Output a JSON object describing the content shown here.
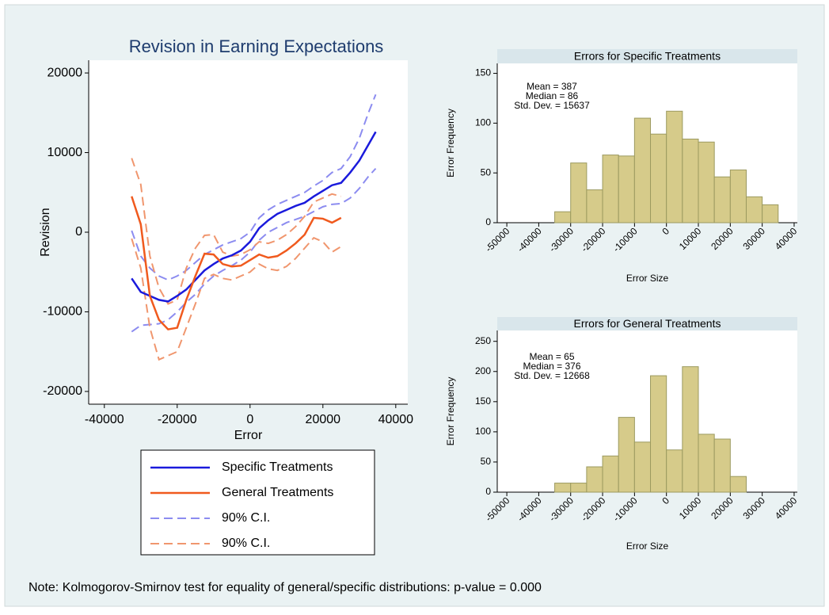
{
  "chart_data": [
    {
      "type": "line",
      "title": "Revision in Earning Expectations",
      "xlabel": "Error",
      "ylabel": "Revision",
      "x": [
        -32500,
        -30000,
        -27500,
        -25000,
        -22500,
        -20000,
        -17500,
        -15000,
        -12500,
        -10000,
        -7500,
        -5000,
        -2500,
        0,
        2500,
        5000,
        7500,
        10000,
        12500,
        15000,
        17500,
        20000,
        22500,
        25000,
        27500,
        30000,
        32500,
        34500
      ],
      "series": [
        {
          "name": "Specific Treatments",
          "color": "#1a1adc",
          "values": [
            -5800,
            -7500,
            -8000,
            -8500,
            -8700,
            -8000,
            -7200,
            -6000,
            -4800,
            -4000,
            -3300,
            -2900,
            -2300,
            -1200,
            500,
            1500,
            2300,
            2800,
            3300,
            3700,
            4500,
            5200,
            5900,
            6200,
            7500,
            9000,
            11000,
            12600
          ]
        },
        {
          "name": "General Treatments",
          "color": "#f05a1e",
          "values": [
            4500,
            1000,
            -8000,
            -11000,
            -12200,
            -12000,
            -8500,
            -5500,
            -2700,
            -2800,
            -4000,
            -4300,
            -4200,
            -3500,
            -2800,
            -3200,
            -3000,
            -2300,
            -1400,
            -300,
            1800,
            1700,
            1200,
            1800,
            null,
            null,
            null,
            null
          ]
        }
      ],
      "bands": [
        {
          "name": "90% C.I.",
          "color": "#8c8cf0",
          "upper": [
            200,
            -3000,
            -4500,
            -5500,
            -6000,
            -5500,
            -4800,
            -3800,
            -2800,
            -2200,
            -1600,
            -1200,
            -800,
            0,
            1800,
            2800,
            3500,
            4000,
            4500,
            5000,
            5800,
            6500,
            7500,
            8000,
            9500,
            11800,
            15000,
            17300
          ],
          "lower": [
            -12500,
            -11700,
            -11600,
            -11500,
            -11000,
            -10000,
            -8800,
            -7800,
            -6500,
            -5500,
            -4800,
            -4200,
            -3500,
            -2500,
            -1000,
            0,
            600,
            1200,
            1600,
            2000,
            2600,
            3200,
            3500,
            3600,
            4300,
            5500,
            7000,
            8000
          ]
        },
        {
          "name": "90% C.I.",
          "color": "#f0966e",
          "upper": [
            9300,
            6000,
            -3000,
            -7000,
            -9000,
            -8500,
            -4500,
            -2000,
            -400,
            -300,
            -2500,
            -3000,
            -2800,
            -2200,
            -1200,
            -1400,
            -1000,
            -300,
            700,
            2000,
            3800,
            4300,
            4800,
            4500,
            null,
            null,
            null,
            null
          ],
          "lower": [
            -800,
            -4500,
            -12000,
            -16000,
            -15500,
            -15000,
            -12000,
            -9000,
            -5800,
            -5300,
            -5800,
            -6000,
            -5500,
            -5000,
            -4000,
            -4600,
            -4800,
            -4300,
            -3300,
            -2000,
            -700,
            -1200,
            -2500,
            -1800,
            null,
            null,
            null,
            null
          ]
        }
      ],
      "xlim": [
        -44300,
        43300
      ],
      "xticks": [
        -40000,
        -20000,
        0,
        20000,
        40000
      ],
      "ylim": [
        -21600,
        21600
      ],
      "yticks": [
        -20000,
        -10000,
        0,
        10000,
        20000
      ]
    },
    {
      "type": "histogram",
      "title": "Errors for Specific Treatments",
      "xlabel": "Error Size",
      "ylabel": "Error Frequency",
      "bins": [
        -35000,
        -30000,
        -25000,
        -20000,
        -15000,
        -10000,
        -5000,
        0,
        5000,
        10000,
        15000,
        20000,
        25000,
        30000,
        35000
      ],
      "values": [
        11,
        60,
        33,
        68,
        67,
        105,
        89,
        112,
        84,
        81,
        46,
        53,
        26,
        18
      ],
      "color": "#d6cb8a",
      "annotations": [
        "Mean = 387",
        "Median = 86",
        "Std. Dev. = 15637"
      ],
      "xlim": [
        -53000,
        41000
      ],
      "xticks": [
        -50000,
        -40000,
        -30000,
        -20000,
        -10000,
        0,
        10000,
        20000,
        30000,
        40000
      ],
      "ylim": [
        0,
        160
      ],
      "yticks": [
        0,
        50,
        100,
        150
      ]
    },
    {
      "type": "histogram",
      "title": "Errors for General Treatments",
      "xlabel": "Error Size",
      "ylabel": "Error Frequency",
      "bins": [
        -35000,
        -30000,
        -25000,
        -20000,
        -15000,
        -10000,
        -5000,
        0,
        5000,
        10000,
        15000,
        20000,
        25000
      ],
      "values": [
        15,
        15,
        42,
        60,
        124,
        83,
        193,
        70,
        208,
        96,
        88,
        26
      ],
      "color": "#d6cb8a",
      "annotations": [
        "Mean = 65",
        "Median = 376",
        "Std. Dev. = 12668"
      ],
      "xlim": [
        -53000,
        41000
      ],
      "xticks": [
        -50000,
        -40000,
        -30000,
        -20000,
        -10000,
        0,
        10000,
        20000,
        30000,
        40000
      ],
      "ylim": [
        0,
        268
      ],
      "yticks": [
        0,
        50,
        100,
        150,
        200,
        250
      ]
    }
  ],
  "note": "Note: Kolmogorov-Smirnov test for equality of general/specific distributions: p-value = 0.000"
}
